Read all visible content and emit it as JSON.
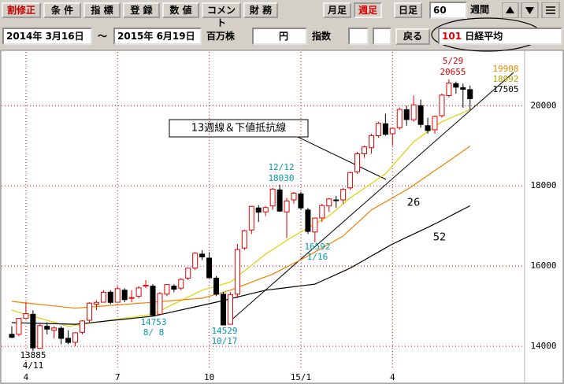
{
  "ui": {
    "toolbar": [
      "割修正",
      "条 件",
      "指 標",
      "登 録",
      "数 値",
      "コメント",
      "財 務",
      "月足",
      "週足",
      "日足",
      "60",
      "週間"
    ],
    "range": {
      "start": "2014年 3月16日",
      "separator": "～",
      "end": "2015年 6月19日",
      "volume_unit": "百万株",
      "price_unit": "円",
      "index_label": "指数",
      "back": "戻る",
      "code": "101",
      "name": "日経平均"
    }
  },
  "chart_data": {
    "type": "candlestick",
    "categories": [
      null,
      null,
      "4",
      null,
      null,
      null,
      null,
      null,
      null,
      null,
      null,
      null,
      null,
      null,
      null,
      "7",
      null,
      null,
      null,
      null,
      null,
      null,
      null,
      null,
      null,
      null,
      null,
      null,
      "10",
      null,
      null,
      null,
      null,
      null,
      null,
      null,
      null,
      null,
      null,
      null,
      null,
      "15/1",
      null,
      null,
      null,
      null,
      null,
      null,
      null,
      null,
      null,
      null,
      null,
      null,
      "4",
      null,
      null,
      null,
      null,
      null,
      null,
      null,
      null,
      null,
      null,
      null
    ],
    "open": [
      14300,
      14300,
      14700,
      14800,
      13950,
      14500,
      14400,
      14450,
      14200,
      14100,
      14350,
      14650,
      15050,
      15100,
      15350,
      15100,
      15400,
      15200,
      15250,
      15500,
      15500,
      14800,
      15300,
      15500,
      15450,
      15700,
      15950,
      16300,
      16200,
      15700,
      15300,
      14550,
      15300,
      16450,
      16900,
      17450,
      17350,
      17500,
      17900,
      17350,
      17650,
      17800,
      17400,
      16850,
      17200,
      17500,
      17650,
      17650,
      17950,
      18350,
      18800,
      18950,
      19250,
      19550,
      19300,
      19450,
      19900,
      19650,
      20000,
      19500,
      19400,
      19750,
      20250,
      20550,
      20450,
      20400
    ],
    "high": [
      14500,
      14700,
      15100,
      14900,
      14550,
      14600,
      14500,
      14500,
      14400,
      14350,
      14650,
      15100,
      15150,
      15400,
      15400,
      15500,
      15450,
      15400,
      15500,
      15650,
      15550,
      15350,
      15550,
      15550,
      15700,
      15950,
      16350,
      16400,
      16350,
      15750,
      15350,
      15350,
      16550,
      16900,
      17500,
      17520,
      17500,
      17950,
      18030,
      17700,
      17850,
      17850,
      17450,
      17200,
      17550,
      17700,
      17750,
      17950,
      18350,
      18850,
      19000,
      19300,
      19600,
      19800,
      19450,
      19950,
      20000,
      20250,
      20150,
      19700,
      19750,
      20300,
      20655,
      20600,
      20550,
      20500
    ],
    "low": [
      14200,
      14250,
      14700,
      13885,
      13950,
      14300,
      14200,
      14050,
      14050,
      14000,
      14300,
      14600,
      14900,
      15100,
      15050,
      15100,
      15100,
      15100,
      15200,
      15450,
      14753,
      14800,
      15250,
      15350,
      15400,
      15650,
      15900,
      16150,
      15700,
      15250,
      14529,
      14550,
      15200,
      16400,
      16800,
      17100,
      17250,
      17400,
      17350,
      16700,
      17550,
      17400,
      16800,
      16592,
      17100,
      17350,
      17450,
      17550,
      17900,
      18300,
      18700,
      18800,
      19200,
      19250,
      19000,
      19400,
      19500,
      19600,
      19450,
      19300,
      19300,
      19700,
      20200,
      20300,
      19950,
      19900
    ],
    "close": [
      14224,
      14696,
      14816,
      13960,
      14516,
      14429,
      14458,
      14199,
      14097,
      14337,
      14632,
      15077,
      15097,
      15349,
      15095,
      15437,
      15164,
      15215,
      15457,
      15523,
      14778,
      15318,
      15539,
      15424,
      15668,
      15948,
      16321,
      16229,
      15708,
      15300,
      14532,
      15291,
      16413,
      16880,
      17490,
      17344,
      17460,
      17920,
      17371,
      17621,
      17818,
      17450,
      16864,
      17198,
      17511,
      17674,
      17648,
      17913,
      18332,
      18798,
      18971,
      19254,
      19560,
      19285,
      19435,
      19907,
      19653,
      20020,
      19531,
      19379,
      19733,
      20264,
      20563,
      20460,
      20407,
      20174
    ],
    "up_color": "#e00000",
    "down_color": "#000000",
    "series": [
      {
        "name": "13",
        "color": "#e0d000",
        "values": [
          14900,
          14850,
          14800,
          14750,
          14700,
          14650,
          14600,
          14550,
          14500,
          14525,
          14550,
          14575,
          14600,
          14625,
          14650,
          14675,
          14700,
          14725,
          14750,
          14775,
          14800,
          14886,
          14971,
          15057,
          15143,
          15229,
          15314,
          15400,
          15450,
          15500,
          15550,
          15600,
          15740,
          15880,
          16020,
          16160,
          16300,
          16413,
          16525,
          16638,
          16750,
          16850,
          16950,
          17050,
          17150,
          17250,
          17400,
          17550,
          17700,
          17820,
          17940,
          18060,
          18180,
          18300,
          18500,
          18700,
          18900,
          19100,
          19225,
          19350,
          19475,
          19600,
          19675,
          19750,
          19825,
          19908
        ]
      },
      {
        "name": "26",
        "color": "#f08000",
        "values": [
          15120,
          15101,
          15082,
          15063,
          15044,
          15026,
          15007,
          14988,
          14969,
          14950,
          14964,
          14977,
          14991,
          15005,
          15018,
          15032,
          15045,
          15059,
          15073,
          15086,
          15100,
          15114,
          15129,
          15143,
          15157,
          15171,
          15186,
          15200,
          15250,
          15300,
          15350,
          15400,
          15467,
          15533,
          15600,
          15667,
          15733,
          15800,
          15890,
          15980,
          16070,
          16160,
          16250,
          16350,
          16450,
          16550,
          16650,
          16750,
          16913,
          17075,
          17238,
          17400,
          17500,
          17600,
          17700,
          17800,
          17900,
          18020,
          18140,
          18260,
          18380,
          18500,
          18623,
          18746,
          18869,
          18992
        ]
      },
      {
        "name": "52",
        "color": "#000000",
        "values": [
          14590,
          14586,
          14581,
          14577,
          14572,
          14568,
          14563,
          14559,
          14554,
          14550,
          14568,
          14586,
          14605,
          14623,
          14641,
          14659,
          14677,
          14695,
          14714,
          14732,
          14750,
          14789,
          14828,
          14867,
          14906,
          14944,
          14983,
          15022,
          15061,
          15100,
          15143,
          15186,
          15229,
          15271,
          15314,
          15357,
          15400,
          15421,
          15443,
          15464,
          15486,
          15507,
          15529,
          15550,
          15630,
          15710,
          15790,
          15870,
          15950,
          16050,
          16150,
          16250,
          16350,
          16450,
          16550,
          16633,
          16717,
          16800,
          16883,
          16967,
          17050,
          17141,
          17232,
          17323,
          17414,
          17505
        ]
      }
    ],
    "ylim": [
      13100,
      21300
    ],
    "yticks": [
      14000,
      16000,
      18000,
      20000
    ],
    "grid": true,
    "grid_color": "#e00000",
    "annotations": [
      {
        "text": "13885",
        "color": "#000000"
      },
      {
        "text": "4/11",
        "color": "#000000"
      },
      {
        "text": "14753",
        "color": "#0898a8"
      },
      {
        "text": "8/ 8",
        "color": "#0898a8"
      },
      {
        "text": "14529",
        "color": "#0898a8"
      },
      {
        "text": "10/17",
        "color": "#0898a8"
      },
      {
        "text": "12/12",
        "color": "#0898a8"
      },
      {
        "text": "18030",
        "color": "#0898a8"
      },
      {
        "text": "16592",
        "color": "#0898a8"
      },
      {
        "text": "1/16",
        "color": "#0898a8"
      },
      {
        "text": "5/29",
        "color": "#e00000"
      },
      {
        "text": "20655",
        "color": "#e00000"
      },
      {
        "text": "19908",
        "color": "#e09000"
      },
      {
        "text": "18992",
        "color": "#b8a000"
      },
      {
        "text": "17505",
        "color": "#000000"
      },
      {
        "text": "13週線＆下値抵抗線",
        "color": "#000000"
      },
      {
        "text": "26",
        "color": "#000000"
      },
      {
        "text": "52",
        "color": "#000000"
      }
    ]
  }
}
